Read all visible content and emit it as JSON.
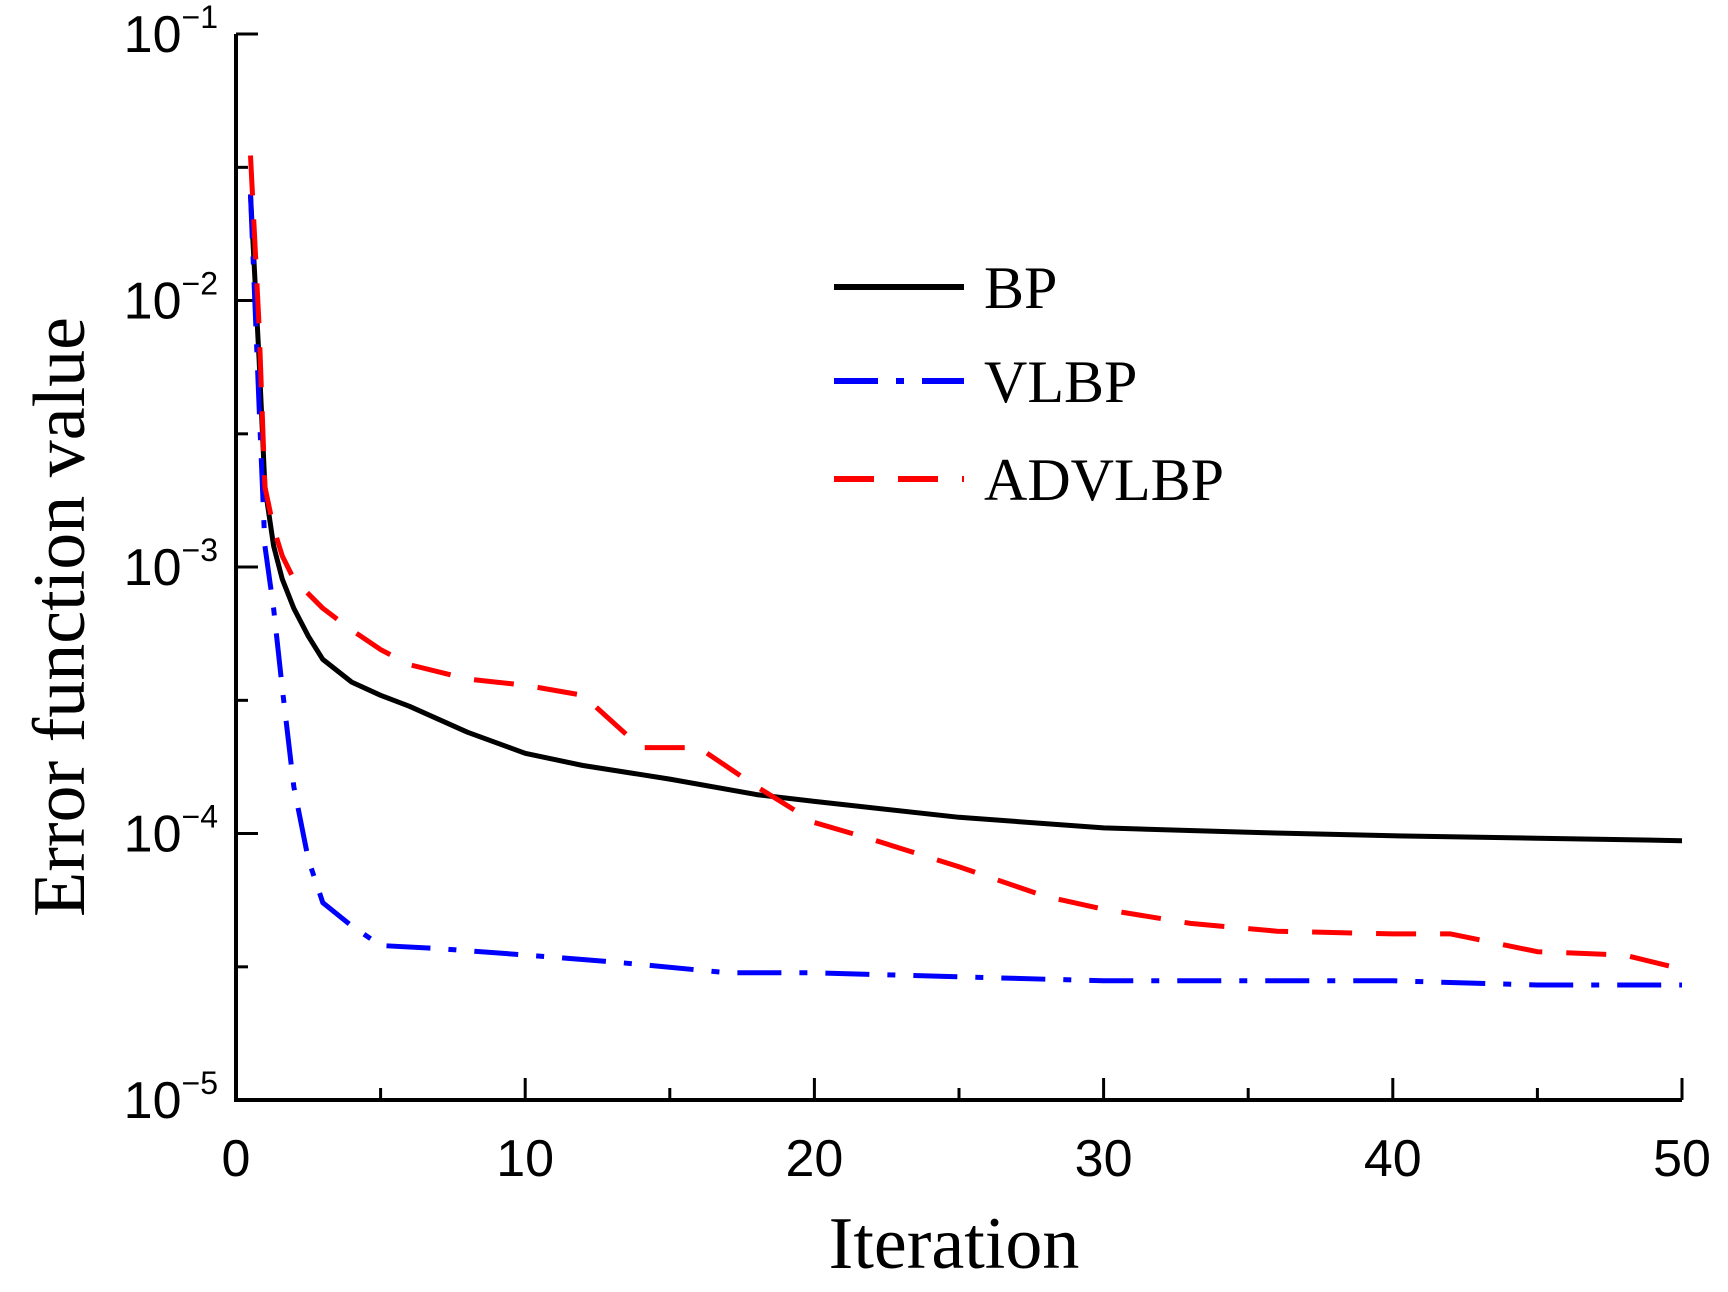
{
  "chart_data": {
    "type": "line",
    "title": "",
    "xlabel": "Iteration",
    "ylabel": "Error function value",
    "xlim": [
      0,
      50
    ],
    "ylim": [
      1e-05,
      0.1
    ],
    "yscale": "log",
    "grid": false,
    "legend_position": "top-right",
    "x_ticks": [
      0,
      10,
      20,
      30,
      40,
      50
    ],
    "x_tick_labels": [
      "0",
      "10",
      "20",
      "30",
      "40",
      "50"
    ],
    "x_minor_ticks": [
      5,
      15,
      25,
      35,
      45
    ],
    "y_ticks": [
      {
        "value": 0.1,
        "base": "10",
        "exp": "−1"
      },
      {
        "value": 0.01,
        "base": "10",
        "exp": "−2"
      },
      {
        "value": 0.001,
        "base": "10",
        "exp": "−3"
      },
      {
        "value": 0.0001,
        "base": "10",
        "exp": "−4"
      },
      {
        "value": 1e-05,
        "base": "10",
        "exp": "−5"
      }
    ],
    "y_minor_ticks": [
      0.0316,
      0.00316,
      0.000316,
      3.16e-05
    ],
    "series": [
      {
        "name": "BP",
        "color": "#000000",
        "dash": "solid",
        "x": [
          0.5,
          0.8,
          1,
          1.3,
          1.6,
          2,
          2.5,
          3,
          4,
          5,
          6,
          8,
          10,
          12,
          15,
          18,
          20,
          25,
          30,
          35,
          40,
          45,
          50
        ],
        "y": [
          0.025,
          0.006,
          0.002,
          0.0012,
          0.0009,
          0.0007,
          0.00055,
          0.00045,
          0.00037,
          0.00033,
          0.0003,
          0.00024,
          0.0002,
          0.00018,
          0.00016,
          0.00014,
          0.000132,
          0.000115,
          0.000105,
          0.000101,
          9.8e-05,
          9.6e-05,
          9.4e-05
        ]
      },
      {
        "name": "VLBP",
        "color": "#0000ff",
        "dash": "dashdot",
        "x": [
          0.5,
          0.8,
          1,
          1.3,
          1.6,
          2,
          2.5,
          3,
          4,
          5,
          7,
          10,
          13,
          17,
          20,
          25,
          30,
          35,
          40,
          45,
          50
        ],
        "y": [
          0.025,
          0.004,
          0.0012,
          0.0007,
          0.00035,
          0.00015,
          8e-05,
          5.5e-05,
          4.5e-05,
          3.8e-05,
          3.7e-05,
          3.5e-05,
          3.3e-05,
          3e-05,
          3e-05,
          2.9e-05,
          2.8e-05,
          2.8e-05,
          2.8e-05,
          2.7e-05,
          2.7e-05
        ]
      },
      {
        "name": "ADVLBP",
        "color": "#ff0000",
        "dash": "dashed",
        "x": [
          0.5,
          0.8,
          1,
          1.3,
          1.6,
          2,
          3,
          4,
          5,
          6,
          8,
          10,
          12,
          14,
          16,
          18,
          20,
          22,
          25,
          28,
          30,
          33,
          36,
          40,
          42,
          45,
          48,
          50
        ],
        "y": [
          0.035,
          0.008,
          0.002,
          0.0014,
          0.0011,
          0.0009,
          0.0007,
          0.00058,
          0.00049,
          0.00043,
          0.00038,
          0.00036,
          0.00033,
          0.00021,
          0.00021,
          0.00015,
          0.00011,
          9.5e-05,
          7.5e-05,
          5.8e-05,
          5.2e-05,
          4.6e-05,
          4.3e-05,
          4.2e-05,
          4.2e-05,
          3.6e-05,
          3.5e-05,
          3.1e-05
        ]
      }
    ]
  }
}
